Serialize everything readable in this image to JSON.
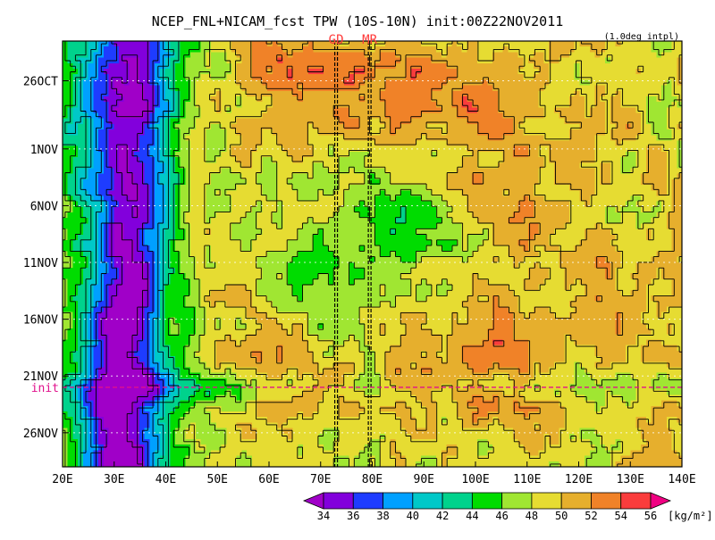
{
  "chart_data": {
    "type": "heatmap",
    "title": "NCEP_FNL+NICAM_fcst TPW (10S-10N) init:00Z22NOV2011",
    "note": "(1.0deg intpl)",
    "x_ticks": [
      "20E",
      "30E",
      "40E",
      "50E",
      "60E",
      "70E",
      "80E",
      "90E",
      "100E",
      "110E",
      "120E",
      "130E",
      "140E"
    ],
    "x_range": [
      20,
      140
    ],
    "y_ticks": [
      {
        "label": "26OCT",
        "day": 1
      },
      {
        "label": "1NOV",
        "day": 7
      },
      {
        "label": "6NOV",
        "day": 12
      },
      {
        "label": "11NOV",
        "day": 17
      },
      {
        "label": "16NOV",
        "day": 22
      },
      {
        "label": "21NOV",
        "day": 27
      },
      {
        "label": "26NOV",
        "day": 32
      }
    ],
    "y_range": [
      -2.5,
      35
    ],
    "init": {
      "label": "init",
      "day": 28,
      "color": "#e0118c"
    },
    "markers": [
      {
        "label": "GD",
        "lon": 73
      },
      {
        "label": "MR",
        "lon": 79.5
      }
    ],
    "marker_color": "#ff3b3b",
    "colorbar": {
      "levels": [
        "34",
        "36",
        "38",
        "40",
        "42",
        "44",
        "46",
        "48",
        "50",
        "52",
        "54",
        "56"
      ],
      "colors": [
        "#a000c8",
        "#8200dc",
        "#1e3cff",
        "#00a0ff",
        "#00c8c8",
        "#00d28c",
        "#00dc00",
        "#a0e632",
        "#e6dc32",
        "#e6af2d",
        "#f08228",
        "#fa3c3c",
        "#f00082"
      ],
      "unit": "[kg/m²]"
    }
  }
}
